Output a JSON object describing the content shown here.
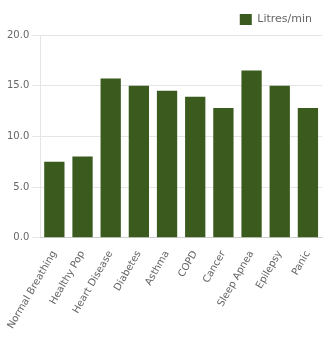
{
  "chart_data": {
    "type": "bar",
    "categories": [
      "Normal Breathing",
      "Healthy Pop",
      "Heart Disease",
      "Diabetes",
      "Asthma",
      "COPD",
      "Cancer",
      "Sleep Apnea",
      "Epilepsy",
      "Panic"
    ],
    "series": [
      {
        "name": "Litres/min",
        "color": "#3a5a1e",
        "values": [
          7.5,
          8.0,
          15.7,
          15.0,
          14.5,
          13.9,
          12.8,
          16.5,
          15.0,
          12.8
        ]
      }
    ],
    "ylim": [
      0,
      20
    ],
    "yticks": [
      {
        "value": 0,
        "label": "0.0"
      },
      {
        "value": 5,
        "label": "5.0"
      },
      {
        "value": 10,
        "label": "10.0"
      },
      {
        "value": 15,
        "label": "15.0"
      },
      {
        "value": 20,
        "label": "20.0"
      }
    ],
    "grid": true,
    "legend": "top-right"
  }
}
